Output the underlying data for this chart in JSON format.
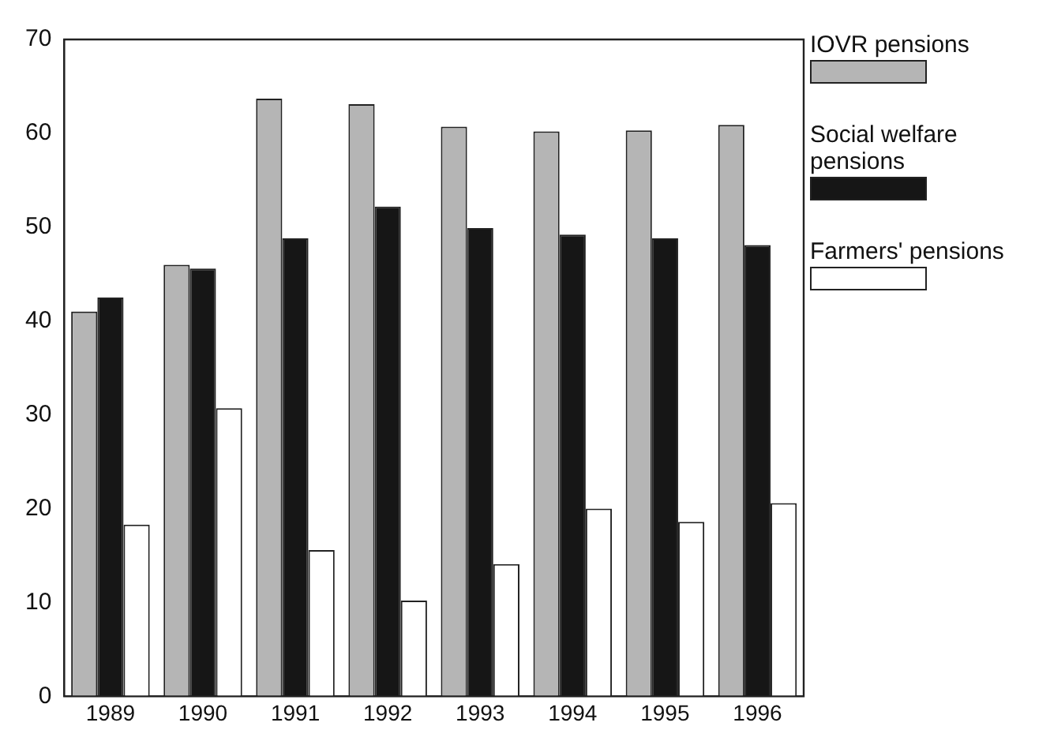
{
  "chart_data": {
    "type": "bar",
    "categories": [
      "1989",
      "1990",
      "1991",
      "1992",
      "1993",
      "1994",
      "1995",
      "1996"
    ],
    "series": [
      {
        "name": "IOVR pensions",
        "color": "#b5b5b5",
        "values": [
          41,
          46,
          63.7,
          63.1,
          60.7,
          60.2,
          60.3,
          60.9
        ]
      },
      {
        "name": "Social welfare pensions",
        "color": "#161616",
        "values": [
          42.5,
          45.6,
          48.8,
          52.2,
          49.9,
          49.2,
          48.8,
          48.1
        ]
      },
      {
        "name": "Farmers' pensions",
        "color": "#ffffff",
        "values": [
          18.3,
          30.7,
          15.6,
          10.2,
          14.1,
          20,
          18.6,
          20.6
        ]
      }
    ],
    "ylim": [
      0,
      70
    ],
    "yticks": [
      0,
      10,
      20,
      30,
      40,
      50,
      60,
      70
    ],
    "grid": false,
    "legend": "right"
  }
}
